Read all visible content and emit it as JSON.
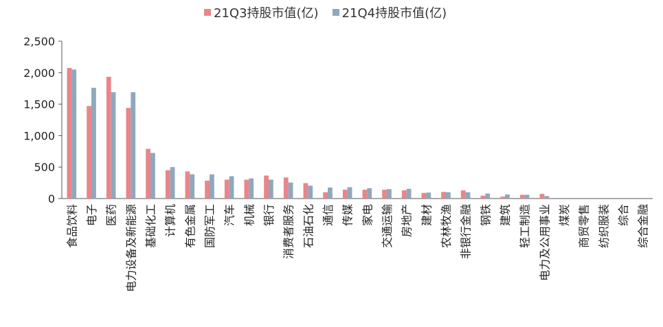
{
  "chart_data": {
    "type": "bar",
    "categories": [
      "食品饮料",
      "电子",
      "医药",
      "电力设备及新能源",
      "基础化工",
      "计算机",
      "有色金属",
      "国防军工",
      "汽车",
      "机械",
      "银行",
      "消费者服务",
      "石油石化",
      "通信",
      "传媒",
      "家电",
      "交通运输",
      "房地产",
      "建材",
      "农林牧渔",
      "非银行金融",
      "钢铁",
      "建筑",
      "轻工制造",
      "电力及公用事业",
      "煤炭",
      "商贸零售",
      "纺织服装",
      "综合",
      "综合金融"
    ],
    "series": [
      {
        "name": "21Q3持股市值(亿)",
        "color": "#e8868a",
        "values": [
          2075,
          1470,
          1935,
          1440,
          790,
          450,
          430,
          285,
          300,
          300,
          365,
          335,
          245,
          100,
          140,
          140,
          140,
          130,
          90,
          105,
          130,
          45,
          30,
          60,
          75,
          0,
          0,
          0,
          0,
          0
        ]
      },
      {
        "name": "21Q4持股市值(亿)",
        "color": "#8fa8bd",
        "values": [
          2050,
          1760,
          1690,
          1690,
          725,
          500,
          385,
          385,
          355,
          320,
          300,
          255,
          205,
          175,
          180,
          165,
          150,
          155,
          95,
          100,
          100,
          80,
          65,
          60,
          40,
          0,
          0,
          0,
          0,
          0
        ]
      }
    ],
    "yticks": [
      "0",
      "500",
      "1,000",
      "1,500",
      "2,000",
      "2,500"
    ],
    "ylim": [
      0,
      2500
    ],
    "legend_position": "top"
  }
}
